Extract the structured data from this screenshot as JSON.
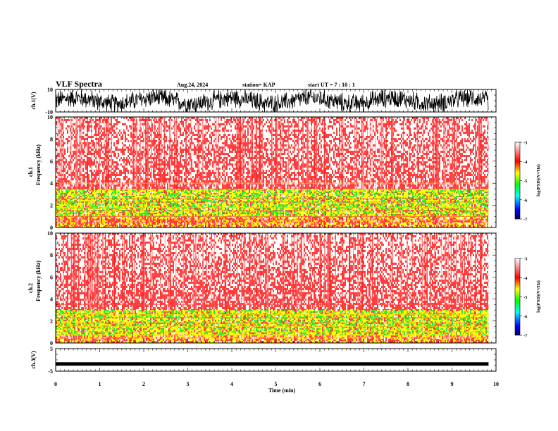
{
  "header": {
    "title": "VLF Spectra",
    "date": "Aug.24, 2024",
    "station": "station= KAP",
    "start_ut": "start UT =  7 : 10 : 1"
  },
  "chart_data": [
    {
      "type": "line",
      "panel": "ch1-waveform",
      "ylabel": "ch.1(V)",
      "ylim": [
        -10,
        10
      ],
      "yticks": [
        "10",
        "-10"
      ],
      "x_range_min": [
        0,
        9.83
      ],
      "description_of_signal": "dense noisy waveform around 0 V, amplitude up to about ±10 V",
      "color": "#000000"
    },
    {
      "type": "heatmap",
      "panel": "ch1-spectrogram",
      "ylabel_line1": "ch.1",
      "ylabel_line2": "Frequency (kHz)",
      "ylim": [
        0,
        10
      ],
      "yticks": [
        "0",
        "2",
        "4",
        "6",
        "8",
        "10"
      ],
      "bands": [
        {
          "from_khz": 1.0,
          "to_khz": 3.5,
          "level": "green-yellow"
        },
        {
          "from_khz": 0.0,
          "to_khz": 1.0,
          "level": "yellow-red"
        },
        {
          "from_khz": 3.5,
          "to_khz": 10,
          "level": "red-white"
        }
      ],
      "colorbar": {
        "label": "log(PSD)(V²/Hz)",
        "ticks": [
          "-3",
          "-4",
          "-5",
          "-6",
          "-7"
        ],
        "range": [
          -7,
          -3
        ]
      }
    },
    {
      "type": "heatmap",
      "panel": "ch2-spectrogram",
      "ylabel_line1": "ch.2",
      "ylabel_line2": "Frequency (kHz)",
      "ylim": [
        0,
        10
      ],
      "yticks": [
        "0",
        "2",
        "4",
        "6",
        "8",
        "10"
      ],
      "bands": [
        {
          "from_khz": 0.8,
          "to_khz": 3.0,
          "level": "green-yellow"
        },
        {
          "from_khz": 0.0,
          "to_khz": 0.8,
          "level": "yellow-red"
        },
        {
          "from_khz": 3.0,
          "to_khz": 10,
          "level": "red-white"
        }
      ],
      "colorbar": {
        "label": "log(PSD)(V²/Hz)",
        "ticks": [
          "-3",
          "-4",
          "-5",
          "-6",
          "-7"
        ],
        "range": [
          -7,
          -3
        ]
      }
    },
    {
      "type": "line",
      "panel": "ch3-waveform",
      "ylabel": "ch.3(V)",
      "ylim": [
        -5,
        5
      ],
      "yticks": [
        "5",
        "-5"
      ],
      "level_v": -1.8,
      "color": "#000000"
    }
  ],
  "xaxis": {
    "label": "Time (min)",
    "ticks": [
      "0",
      "1",
      "2",
      "3",
      "4",
      "5",
      "6",
      "7",
      "8",
      "9",
      "10"
    ],
    "xlim": [
      0,
      10
    ],
    "data_end": 9.83
  },
  "colors": {
    "red": "#ff1f1f",
    "yellow": "#ffff00",
    "green": "#33ee33",
    "blue": "#0000ff",
    "navy": "#000066",
    "white": "#ffffff"
  }
}
